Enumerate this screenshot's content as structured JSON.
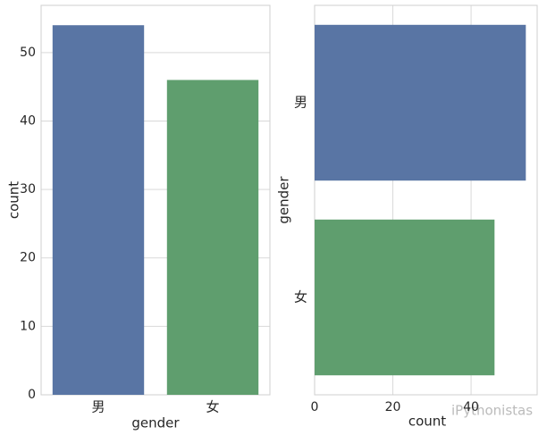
{
  "chart_data": [
    {
      "type": "bar",
      "orientation": "vertical",
      "xlabel": "gender",
      "ylabel": "count",
      "categories": [
        "男",
        "女"
      ],
      "values": [
        54,
        46
      ],
      "colors": [
        "#5975a4",
        "#5f9e6e"
      ],
      "ylim": [
        0,
        56.9
      ],
      "yticks": [
        0,
        10,
        20,
        30,
        40,
        50
      ],
      "grid": true
    },
    {
      "type": "bar",
      "orientation": "horizontal",
      "xlabel": "count",
      "ylabel": "gender",
      "categories": [
        "男",
        "女"
      ],
      "values": [
        54,
        46
      ],
      "colors": [
        "#5975a4",
        "#5f9e6e"
      ],
      "xlim": [
        0,
        56.9
      ],
      "xticks": [
        0,
        20,
        40
      ],
      "grid": true
    }
  ],
  "watermark": "iPythonistas"
}
